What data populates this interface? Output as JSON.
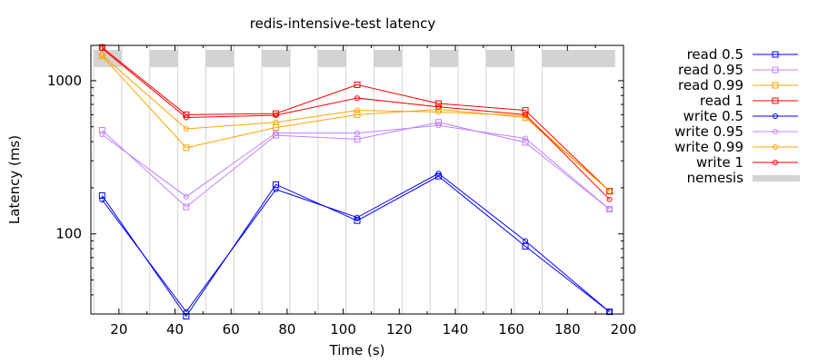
{
  "chart_data": {
    "type": "line",
    "title": "redis-intensive-test latency",
    "xlabel": "Time (s)",
    "ylabel": "Latency (ms)",
    "xlim": [
      10,
      200
    ],
    "ylim": [
      30,
      1700
    ],
    "yscale": "log",
    "x_ticks": [
      20,
      40,
      60,
      80,
      100,
      120,
      140,
      160,
      180,
      200
    ],
    "y_ticks": [
      100,
      1000
    ],
    "grid": false,
    "legend_position": "right",
    "nemesis": {
      "name": "nemesis",
      "color": "#d3d3d3",
      "bands": [
        [
          11,
          21
        ],
        [
          31,
          41
        ],
        [
          51,
          61
        ],
        [
          71,
          81
        ],
        [
          91,
          101
        ],
        [
          111,
          121
        ],
        [
          131,
          141
        ],
        [
          151,
          161
        ],
        [
          171,
          197
        ]
      ],
      "markers": [
        11,
        21,
        31,
        41,
        51,
        61,
        71,
        81,
        91,
        101,
        111,
        121,
        131,
        141,
        151,
        161,
        171
      ]
    },
    "series": [
      {
        "name": "read 0.5",
        "color": "#0000ff",
        "marker": "square",
        "x": [
          14,
          44,
          76,
          105,
          134,
          165,
          195
        ],
        "values": [
          178,
          29,
          210,
          122,
          238,
          83,
          31
        ]
      },
      {
        "name": "read 0.95",
        "color": "#c080ff",
        "marker": "square",
        "x": [
          14,
          44,
          76,
          105,
          134,
          165,
          195
        ],
        "values": [
          475,
          150,
          440,
          415,
          535,
          395,
          145
        ]
      },
      {
        "name": "read 0.99",
        "color": "#ffa500",
        "marker": "square",
        "x": [
          14,
          44,
          76,
          105,
          134,
          165,
          195
        ],
        "values": [
          1450,
          365,
          495,
          600,
          650,
          575,
          190
        ]
      },
      {
        "name": "read 1",
        "color": "#ff0000",
        "marker": "square",
        "x": [
          14,
          44,
          76,
          105,
          134,
          165,
          195
        ],
        "values": [
          1650,
          600,
          610,
          940,
          710,
          640,
          190
        ]
      },
      {
        "name": "write 0.5",
        "color": "#0000ff",
        "marker": "circle",
        "x": [
          14,
          44,
          76,
          105,
          134,
          165,
          195
        ],
        "values": [
          167,
          31,
          195,
          128,
          248,
          90,
          31
        ]
      },
      {
        "name": "write 0.95",
        "color": "#c080ff",
        "marker": "circle",
        "x": [
          14,
          44,
          76,
          105,
          134,
          165,
          195
        ],
        "values": [
          445,
          175,
          455,
          455,
          510,
          420,
          145
        ]
      },
      {
        "name": "write 0.99",
        "color": "#ffa500",
        "marker": "circle",
        "x": [
          14,
          44,
          76,
          105,
          134,
          165,
          195
        ],
        "values": [
          1470,
          485,
          535,
          640,
          625,
          590,
          190
        ]
      },
      {
        "name": "write 1",
        "color": "#ff0000",
        "marker": "circle",
        "x": [
          14,
          44,
          76,
          105,
          134,
          165,
          195
        ],
        "values": [
          1620,
          575,
          595,
          770,
          675,
          600,
          168
        ]
      }
    ]
  }
}
